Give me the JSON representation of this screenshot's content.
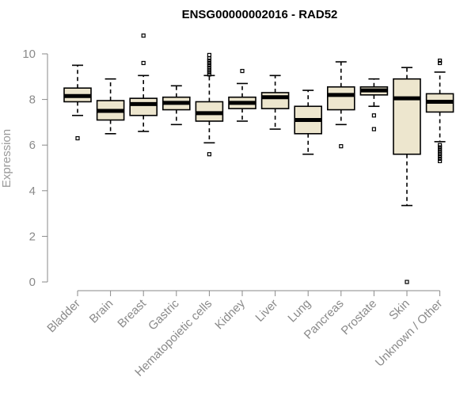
{
  "chart_data": {
    "type": "boxplot",
    "title": "ENSG00000002016 - RAD52",
    "xlabel": "",
    "ylabel": "Expression",
    "ylim": [
      0,
      10
    ],
    "yticks": [
      0,
      2,
      4,
      6,
      8,
      10
    ],
    "grid": false,
    "legend": "none",
    "box_fill": "#ede6ce",
    "categories": [
      "Bladder",
      "Brain",
      "Breast",
      "Gastric",
      "Hematopoietic cells",
      "Kidney",
      "Liver",
      "Lung",
      "Pancreas",
      "Prostate",
      "Skin",
      "Unknown / Other"
    ],
    "boxes": [
      {
        "category": "Bladder",
        "whisker_low": 7.3,
        "q1": 7.9,
        "median": 8.15,
        "q3": 8.5,
        "whisker_high": 9.5,
        "outliers": [
          6.3
        ]
      },
      {
        "category": "Brain",
        "whisker_low": 6.5,
        "q1": 7.1,
        "median": 7.5,
        "q3": 7.95,
        "whisker_high": 8.9,
        "outliers": []
      },
      {
        "category": "Breast",
        "whisker_low": 6.6,
        "q1": 7.3,
        "median": 7.8,
        "q3": 8.05,
        "whisker_high": 9.05,
        "outliers": [
          9.6,
          10.8
        ]
      },
      {
        "category": "Gastric",
        "whisker_low": 6.9,
        "q1": 7.55,
        "median": 7.85,
        "q3": 8.1,
        "whisker_high": 8.6,
        "outliers": []
      },
      {
        "category": "Hematopoietic cells",
        "whisker_low": 6.1,
        "q1": 7.05,
        "median": 7.4,
        "q3": 7.9,
        "whisker_high": 9.05,
        "outliers": [
          5.6,
          9.1,
          9.2,
          9.3,
          9.4,
          9.5,
          9.6,
          9.7,
          9.8,
          9.95
        ]
      },
      {
        "category": "Kidney",
        "whisker_low": 7.05,
        "q1": 7.6,
        "median": 7.85,
        "q3": 8.1,
        "whisker_high": 8.7,
        "outliers": [
          9.25
        ]
      },
      {
        "category": "Liver",
        "whisker_low": 6.7,
        "q1": 7.6,
        "median": 8.1,
        "q3": 8.3,
        "whisker_high": 9.05,
        "outliers": []
      },
      {
        "category": "Lung",
        "whisker_low": 5.6,
        "q1": 6.5,
        "median": 7.1,
        "q3": 7.7,
        "whisker_high": 8.4,
        "outliers": []
      },
      {
        "category": "Pancreas",
        "whisker_low": 6.9,
        "q1": 7.55,
        "median": 8.2,
        "q3": 8.55,
        "whisker_high": 9.65,
        "outliers": [
          5.95
        ]
      },
      {
        "category": "Prostate",
        "whisker_low": 7.7,
        "q1": 8.2,
        "median": 8.4,
        "q3": 8.55,
        "whisker_high": 8.9,
        "outliers": [
          6.7,
          7.3
        ]
      },
      {
        "category": "Skin",
        "whisker_low": 3.35,
        "q1": 5.6,
        "median": 8.05,
        "q3": 8.9,
        "whisker_high": 9.4,
        "outliers": [
          0.0
        ]
      },
      {
        "category": "Unknown / Other",
        "whisker_low": 6.15,
        "q1": 7.45,
        "median": 7.9,
        "q3": 8.25,
        "whisker_high": 9.2,
        "outliers": [
          5.3,
          5.4,
          5.5,
          5.6,
          5.7,
          5.8,
          5.9,
          6.0,
          9.6,
          9.7
        ]
      }
    ]
  }
}
